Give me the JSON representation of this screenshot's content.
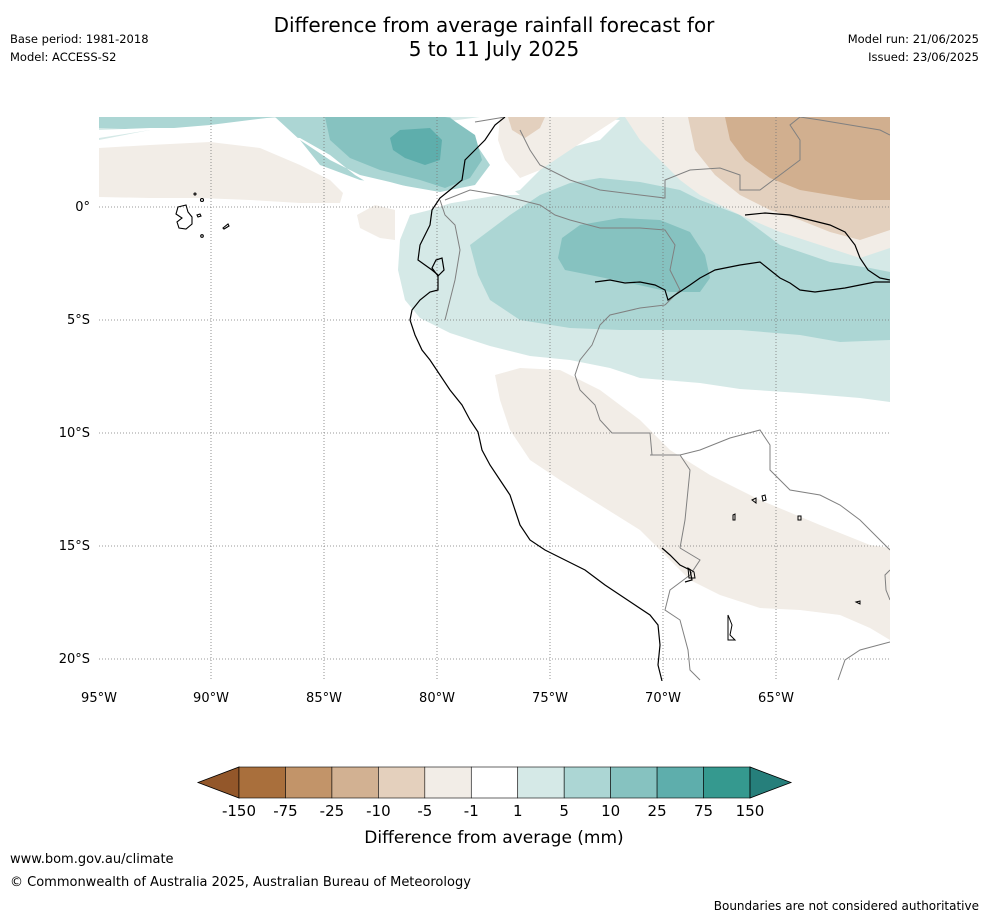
{
  "header": {
    "title_line1": "Difference from average rainfall forecast for",
    "title_line2": "5 to 11 July 2025",
    "base_period": "Base period: 1981-2018",
    "model": "Model: ACCESS-S2",
    "model_run": "Model run: 21/06/2025",
    "issued": "Issued: 23/06/2025"
  },
  "map": {
    "lat_labels": [
      "0°",
      "5°S",
      "10°S",
      "15°S",
      "20°S"
    ],
    "lon_labels": [
      "95°W",
      "90°W",
      "85°W",
      "80°W",
      "75°W",
      "70°W",
      "65°W"
    ],
    "colors": {
      "wet_light": "#d5e9e7",
      "wet_mid": "#acd6d4",
      "wet_strong": "#86c2c0",
      "wet_heavy": "#5eaeac",
      "dry_light": "#f2ede7",
      "dry_mid": "#e3d0be",
      "dry_strong": "#d1af8f"
    }
  },
  "colorbar": {
    "title": "Difference from average (mm)",
    "tick_labels": [
      "-150",
      "-75",
      "-25",
      "-10",
      "-5",
      "-1",
      "1",
      "5",
      "10",
      "25",
      "75",
      "150"
    ],
    "colors": [
      "#a96f3c",
      "#c29469",
      "#d2b192",
      "#e4d0bd",
      "#f2ede7",
      "#ffffff",
      "#d5e9e7",
      "#acd6d4",
      "#86c2c0",
      "#5eaeac",
      "#35998f"
    ],
    "under_color": "#93572a",
    "over_color": "#267f7b"
  },
  "footer": {
    "url": "www.bom.gov.au/climate",
    "copyright": "© Commonwealth of Australia 2025, Australian Bureau of Meteorology",
    "disclaimer": "Boundaries are not considered authoritative"
  }
}
